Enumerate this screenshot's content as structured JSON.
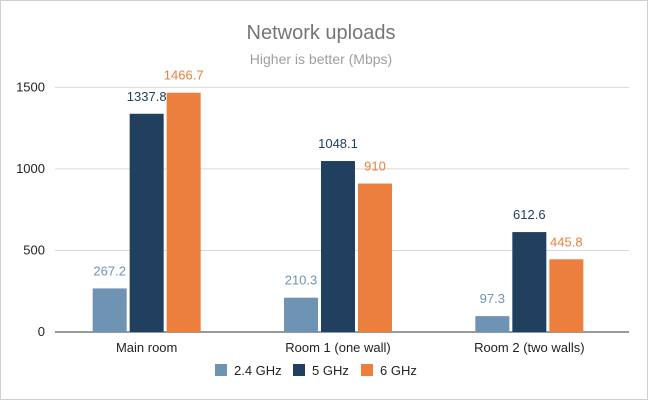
{
  "chart_data": {
    "type": "bar",
    "title": "Network uploads",
    "subtitle": "Higher is better (Mbps)",
    "xlabel": "",
    "ylabel": "",
    "categories": [
      "Main room",
      "Room 1 (one wall)",
      "Room 2 (two walls)"
    ],
    "series": [
      {
        "name": "2.4 GHz",
        "color": "#6f93b3",
        "label_color": "#6f93b3",
        "values": [
          267.2,
          210.3,
          97.3
        ],
        "labels": [
          "267.2",
          "210.3",
          "97.3"
        ]
      },
      {
        "name": "5 GHz",
        "color": "#213f5e",
        "label_color": "#213f5e",
        "values": [
          1337.8,
          1048.1,
          612.6
        ],
        "labels": [
          "1337.8",
          "1048.1",
          "612.6"
        ]
      },
      {
        "name": "6 GHz",
        "color": "#ec7f3e",
        "label_color": "#ec7f3e",
        "values": [
          1466.7,
          910,
          445.8
        ],
        "labels": [
          "1466.7",
          "910",
          "445.8"
        ]
      }
    ],
    "yticks": [
      0,
      500,
      1000,
      1500
    ],
    "ytick_labels": [
      "0",
      "500",
      "1000",
      "1500"
    ],
    "ylim": [
      0,
      1600
    ],
    "grid": true,
    "legend_position": "bottom"
  }
}
